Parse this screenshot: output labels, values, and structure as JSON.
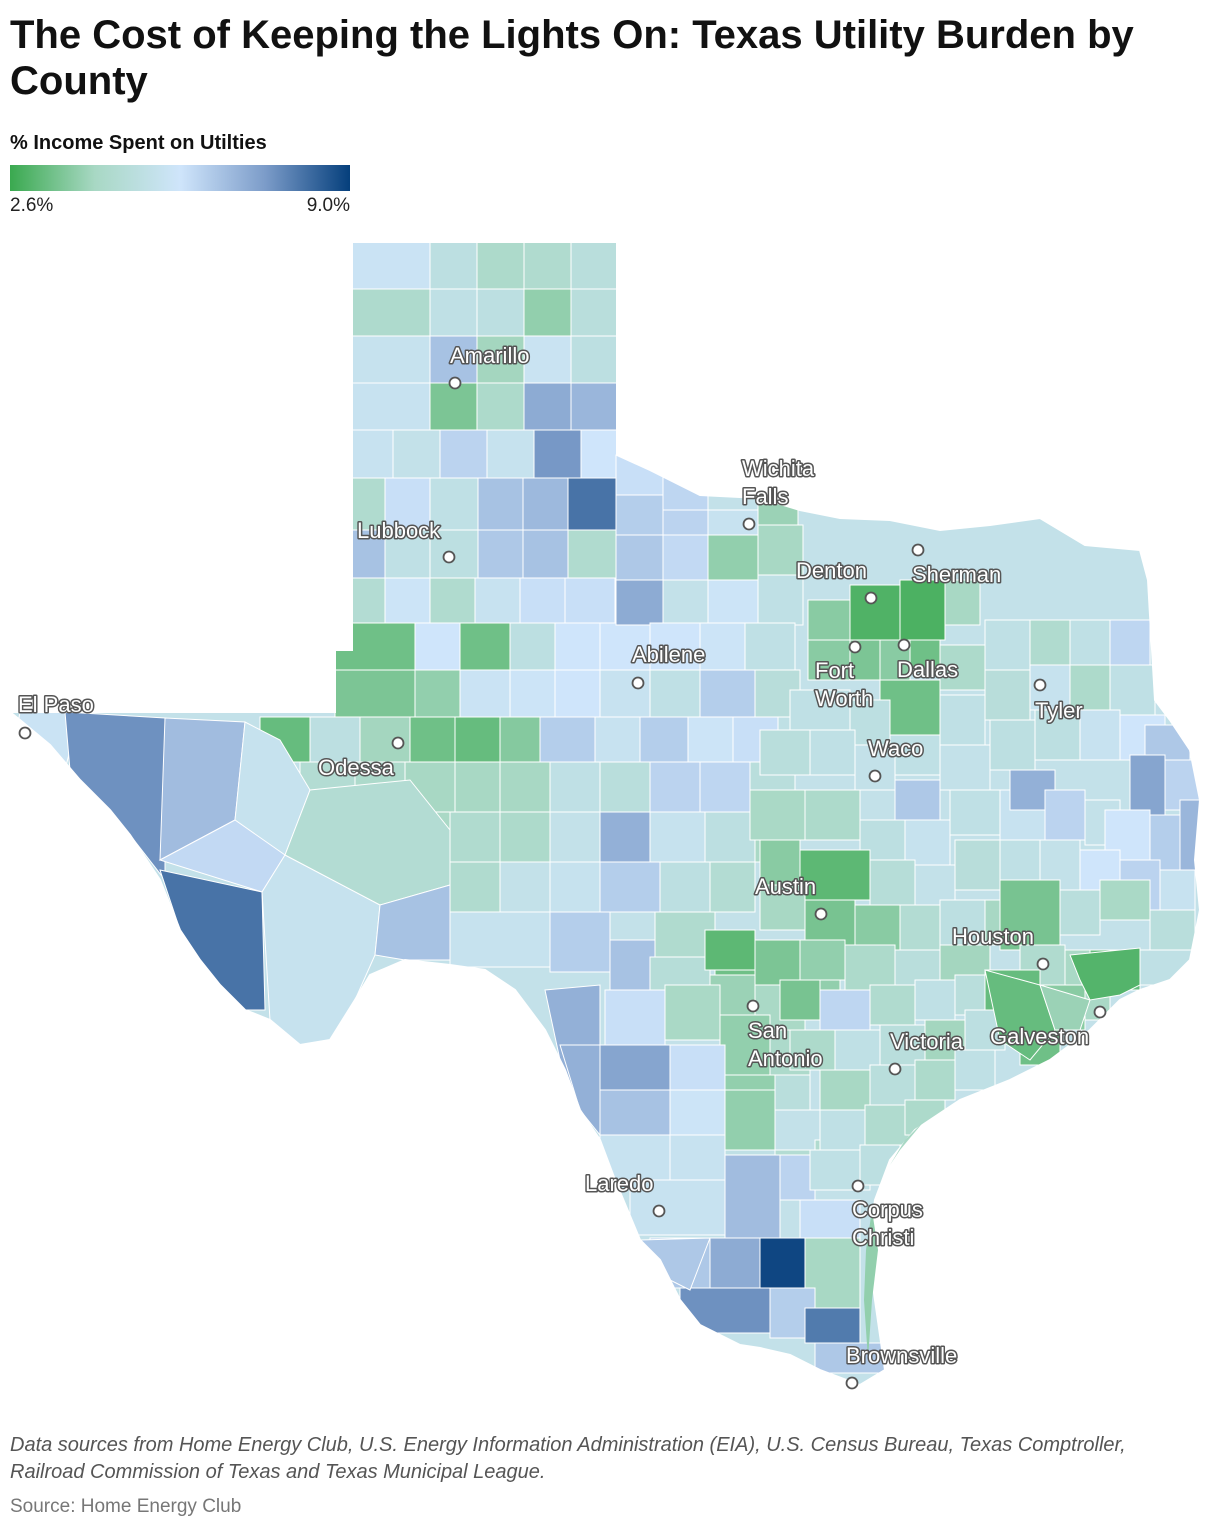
{
  "title": "The Cost of Keeping the Lights On: Texas Utility Burden by County",
  "legend": {
    "title": "% Income Spent on Utilties",
    "min_label": "2.6%",
    "max_label": "9.0%",
    "min": 2.6,
    "max": 9.0,
    "stops": [
      "#3aa94f",
      "#a8d8c4",
      "#cfe5fb",
      "#7c9cc9",
      "#053f7c"
    ]
  },
  "cities": [
    {
      "name": "Amarillo",
      "lines": [
        "Amarillo"
      ]
    },
    {
      "name": "Lubbock",
      "lines": [
        "Lubbock"
      ]
    },
    {
      "name": "Wichita Falls",
      "lines": [
        "Wichita",
        "Falls"
      ]
    },
    {
      "name": "Denton",
      "lines": [
        "Denton"
      ]
    },
    {
      "name": "Sherman",
      "lines": [
        "Sherman"
      ]
    },
    {
      "name": "Abilene",
      "lines": [
        "Abilene"
      ]
    },
    {
      "name": "Fort Worth",
      "lines": [
        "Fort",
        "Worth"
      ]
    },
    {
      "name": "Dallas",
      "lines": [
        "Dallas"
      ]
    },
    {
      "name": "Tyler",
      "lines": [
        "Tyler"
      ]
    },
    {
      "name": "El Paso",
      "lines": [
        "El Paso"
      ]
    },
    {
      "name": "Odessa",
      "lines": [
        "Odessa"
      ]
    },
    {
      "name": "Waco",
      "lines": [
        "Waco"
      ]
    },
    {
      "name": "Austin",
      "lines": [
        "Austin"
      ]
    },
    {
      "name": "Houston",
      "lines": [
        "Houston"
      ]
    },
    {
      "name": "San Antonio",
      "lines": [
        "San",
        "Antonio"
      ]
    },
    {
      "name": "Victoria",
      "lines": [
        "Victoria"
      ]
    },
    {
      "name": "Galveston",
      "lines": [
        "Galveston"
      ]
    },
    {
      "name": "Laredo",
      "lines": [
        "Laredo"
      ]
    },
    {
      "name": "Corpus Christi",
      "lines": [
        "Corpus",
        "Christi"
      ]
    },
    {
      "name": "Brownsville",
      "lines": [
        "Brownsville"
      ]
    }
  ],
  "footer": {
    "notes": "Data sources from Home Energy Club, U.S. Energy Information Administration (EIA), U.S. Census Bureau, Texas Comptroller, Railroad Commission of Texas and Texas Municipal League.",
    "source": "Source: Home Energy Club"
  }
}
